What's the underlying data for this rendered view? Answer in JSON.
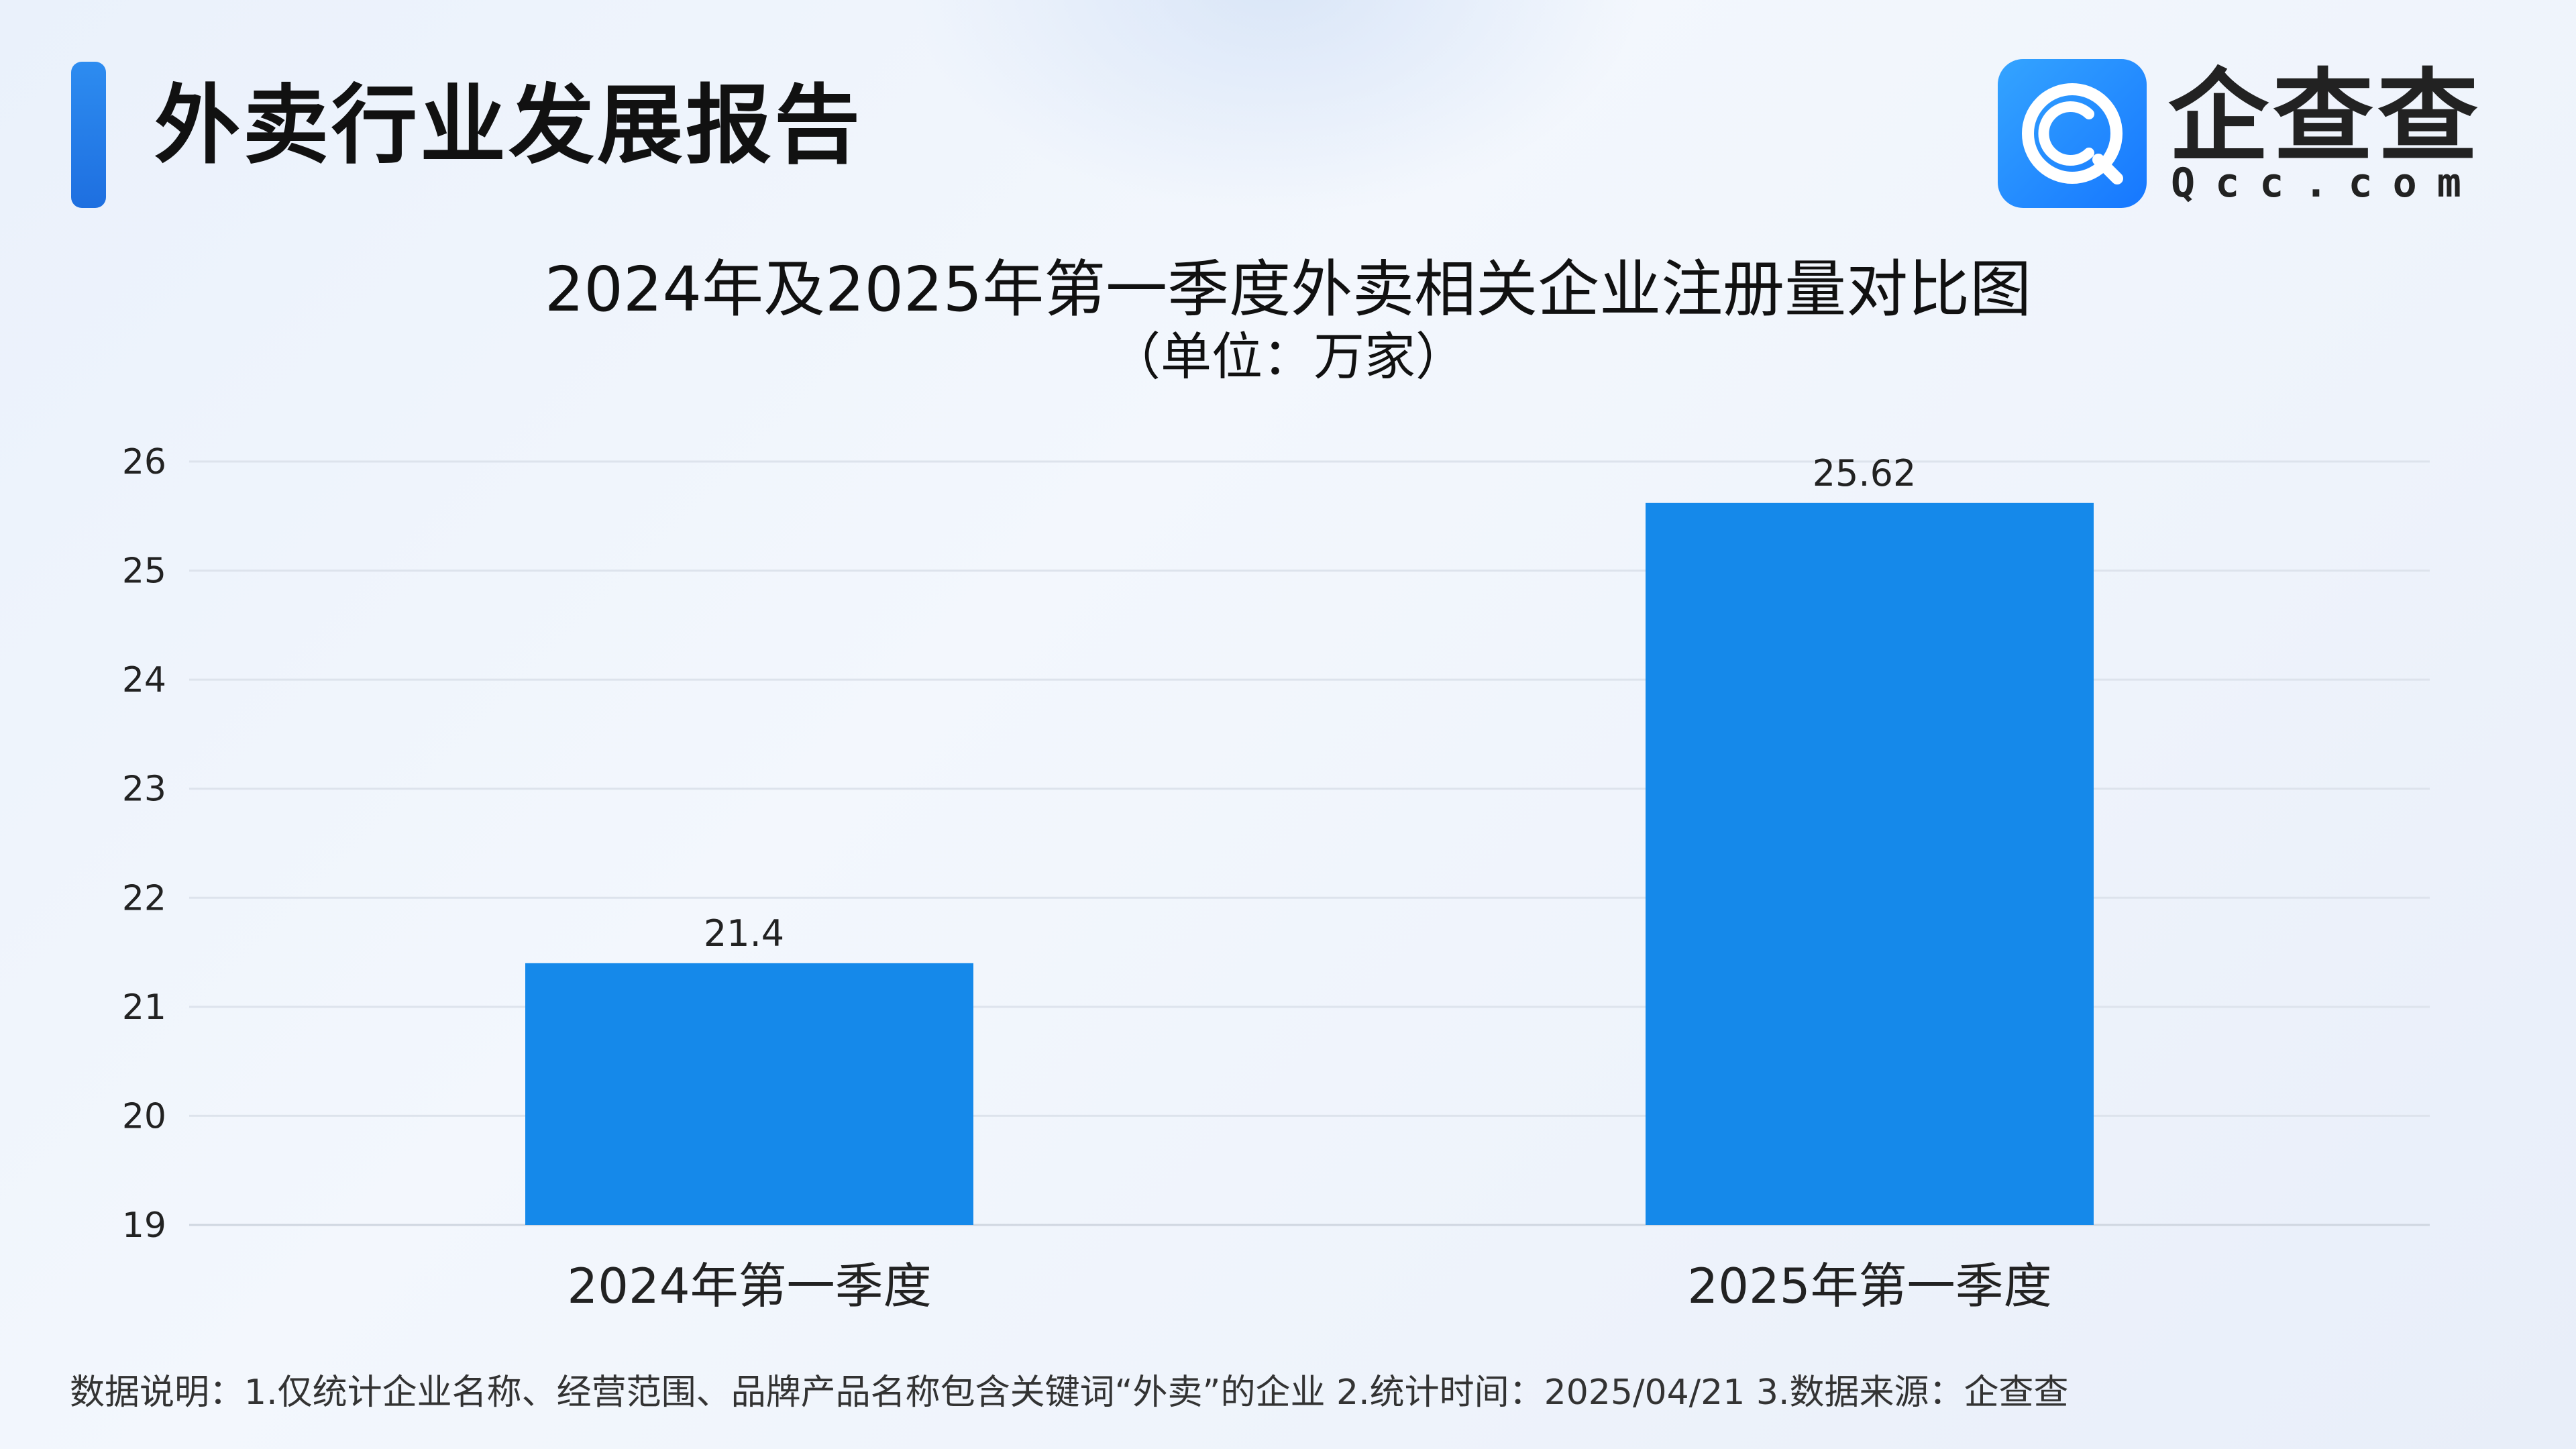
{
  "header": {
    "report_title": "外卖行业发展报告",
    "brand_name": "企查查",
    "brand_url": "Qcc.com"
  },
  "chart_data": {
    "type": "bar",
    "title": "2024年及2025年第一季度外卖相关企业注册量对比图",
    "subtitle": "（单位：万家）",
    "categories": [
      "2024年第一季度",
      "2025年第一季度"
    ],
    "values": [
      21.4,
      25.62
    ],
    "value_labels": [
      "21.4",
      "25.62"
    ],
    "ylim": [
      19,
      26
    ],
    "yticks": [
      19,
      20,
      21,
      22,
      23,
      24,
      25,
      26
    ],
    "grid": true,
    "bar_color": "#1589ea"
  },
  "footnote": "数据说明：1.仅统计企业名称、经营范围、品牌产品名称包含关键词“外卖”的企业   2.统计时间：2025/04/21    3.数据来源：企查查"
}
